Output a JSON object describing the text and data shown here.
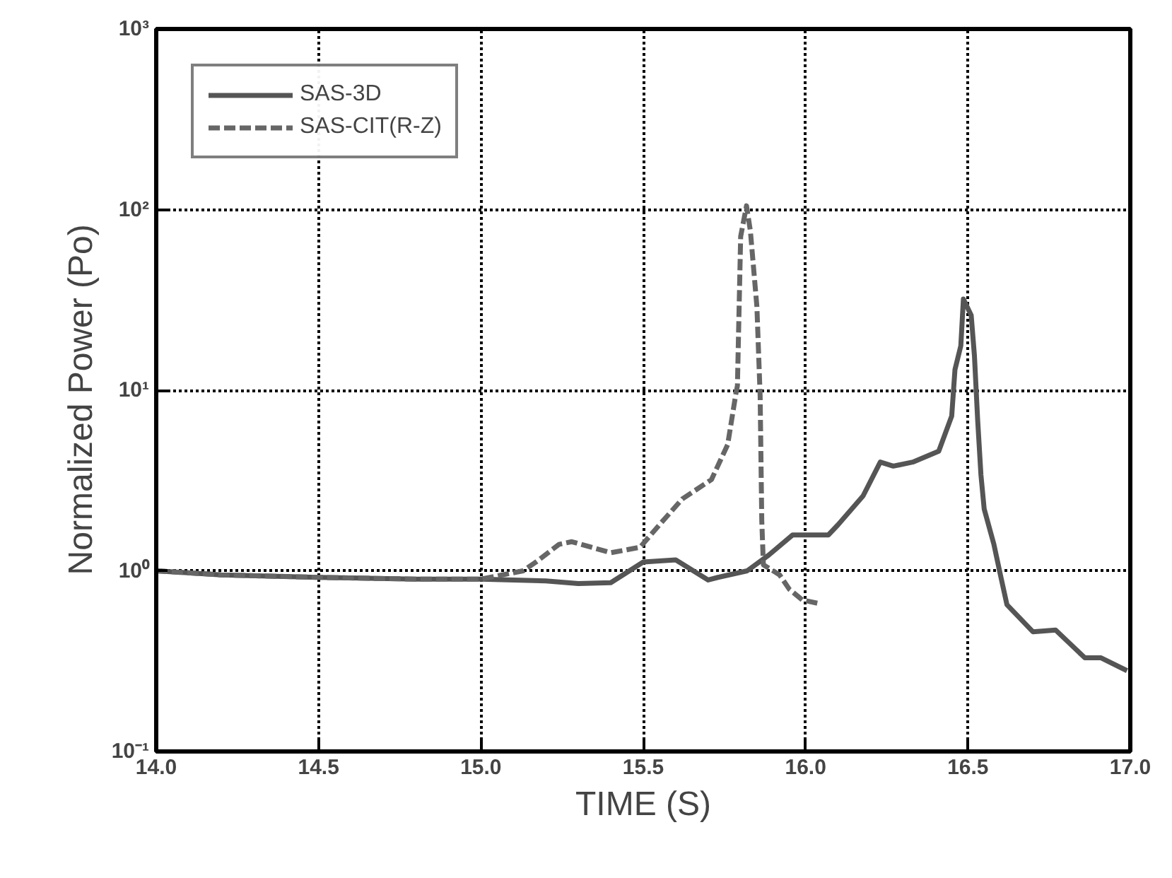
{
  "chart_data": {
    "type": "line",
    "xlabel": "TIME (S)",
    "ylabel": "Normalized  Power  (Po)",
    "log": "y",
    "grid": true,
    "legend": "top left",
    "marker": "none",
    "xlim": [
      14.0,
      17.0
    ],
    "xticks": [
      {
        "value": 14.0,
        "label": "14.0"
      },
      {
        "value": 14.5,
        "label": "14.5"
      },
      {
        "value": 15.0,
        "label": "15.0"
      },
      {
        "value": 15.5,
        "label": "15.5"
      },
      {
        "value": 16.0,
        "label": "16.0"
      },
      {
        "value": 16.5,
        "label": "16.5"
      },
      {
        "value": 17.0,
        "label": "17.0"
      }
    ],
    "ylim": [
      0.1,
      1000
    ],
    "yticks": [
      {
        "value": 0.1,
        "label": "10⁻¹"
      },
      {
        "value": 1,
        "label": "10⁰"
      },
      {
        "value": 10,
        "label": "10¹"
      },
      {
        "value": 100,
        "label": "10²"
      },
      {
        "value": 1000,
        "label": "10³"
      }
    ],
    "series": [
      {
        "name": "SAS-3D",
        "color": "#555555",
        "line_style": "solid",
        "x": [
          14.0,
          14.2,
          14.5,
          14.8,
          15.0,
          15.2,
          15.3,
          15.4,
          15.5,
          15.6,
          15.7,
          15.73,
          15.82,
          15.886,
          15.96,
          16.07,
          16.1,
          16.177,
          16.23,
          16.27,
          16.33,
          16.41,
          16.45,
          16.46,
          16.478,
          16.486,
          16.51,
          16.52,
          16.53,
          16.54,
          16.55,
          16.58,
          16.6,
          16.62,
          16.7,
          16.77,
          16.86,
          16.91,
          16.99
        ],
        "values": [
          1.0,
          0.95,
          0.92,
          0.9,
          0.9,
          0.88,
          0.85,
          0.86,
          1.12,
          1.15,
          0.89,
          0.92,
          1.0,
          1.22,
          1.58,
          1.58,
          1.8,
          2.6,
          4.0,
          3.8,
          4.0,
          4.6,
          7.2,
          13,
          17.6,
          32,
          26,
          15.5,
          6.8,
          3.4,
          2.2,
          1.4,
          0.95,
          0.65,
          0.46,
          0.47,
          0.33,
          0.33,
          0.28
        ]
      },
      {
        "name": "SAS-CIT(R-Z)",
        "color": "#666666",
        "line_style": "dashed",
        "x": [
          14.0,
          14.2,
          14.5,
          14.8,
          15.0,
          15.13,
          15.17,
          15.24,
          15.28,
          15.4,
          15.49,
          15.55,
          15.62,
          15.71,
          15.76,
          15.785,
          15.79,
          15.8,
          15.818,
          15.83,
          15.85,
          15.86,
          15.865,
          15.87,
          15.92,
          15.95,
          15.99,
          16.04
        ],
        "values": [
          1.0,
          0.95,
          0.92,
          0.9,
          0.9,
          1.0,
          1.12,
          1.4,
          1.45,
          1.26,
          1.35,
          1.8,
          2.5,
          3.2,
          5.0,
          9.5,
          10.6,
          71,
          105,
          76,
          29,
          9.3,
          1.9,
          1.08,
          0.95,
          0.79,
          0.69,
          0.66
        ]
      }
    ]
  }
}
